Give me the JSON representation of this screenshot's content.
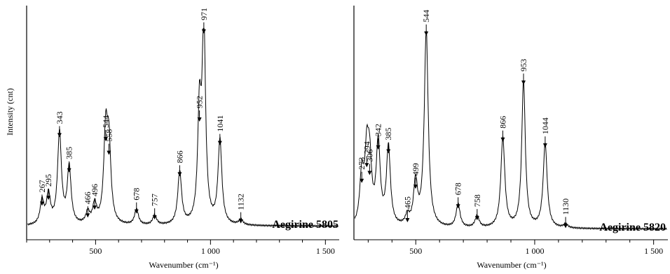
{
  "chart_data": [
    {
      "type": "line",
      "title": "Aegirine 5805",
      "xlabel": "Wavenumber (cm⁻¹)",
      "ylabel": "Intensity (cnt)",
      "xlim": [
        200,
        1560
      ],
      "xticks": [
        500,
        1000,
        1500
      ],
      "xtick_labels": [
        "500",
        "1 000",
        "1 500"
      ],
      "line_color": "#000000",
      "baseline": 0.03,
      "peaks": [
        {
          "label": "267",
          "x": 267,
          "y": 0.12
        },
        {
          "label": "295",
          "x": 295,
          "y": 0.15
        },
        {
          "label": "343",
          "x": 343,
          "y": 0.47
        },
        {
          "label": "385",
          "x": 385,
          "y": 0.29
        },
        {
          "label": "466",
          "x": 466,
          "y": 0.06
        },
        {
          "label": "496",
          "x": 496,
          "y": 0.1
        },
        {
          "label": "544",
          "x": 544,
          "y": 0.45
        },
        {
          "label": "558",
          "x": 558,
          "y": 0.38
        },
        {
          "label": "678",
          "x": 678,
          "y": 0.08
        },
        {
          "label": "757",
          "x": 757,
          "y": 0.05
        },
        {
          "label": "866",
          "x": 866,
          "y": 0.27
        },
        {
          "label": "952",
          "x": 952,
          "y": 0.55
        },
        {
          "label": "971",
          "x": 971,
          "y": 1.0
        },
        {
          "label": "1041",
          "x": 1041,
          "y": 0.43
        },
        {
          "label": "1132",
          "x": 1132,
          "y": 0.03
        }
      ]
    },
    {
      "type": "line",
      "title": "Aegirine 5820",
      "xlabel": "Wavenumber (cm⁻¹)",
      "ylabel": "",
      "xlim": [
        240,
        1560
      ],
      "xticks": [
        500,
        1000,
        1500
      ],
      "xtick_labels": [
        "500",
        "1 000",
        "1 500"
      ],
      "line_color": "#000000",
      "baseline": 0.03,
      "peaks": [
        {
          "label": "273",
          "x": 273,
          "y": 0.25
        },
        {
          "label": "294",
          "x": 294,
          "y": 0.33
        },
        {
          "label": "306",
          "x": 306,
          "y": 0.29
        },
        {
          "label": "342",
          "x": 342,
          "y": 0.42
        },
        {
          "label": "385",
          "x": 385,
          "y": 0.4
        },
        {
          "label": "465",
          "x": 465,
          "y": 0.05
        },
        {
          "label": "499",
          "x": 499,
          "y": 0.22
        },
        {
          "label": "544",
          "x": 544,
          "y": 1.0
        },
        {
          "label": "678",
          "x": 678,
          "y": 0.12
        },
        {
          "label": "758",
          "x": 758,
          "y": 0.06
        },
        {
          "label": "866",
          "x": 866,
          "y": 0.46
        },
        {
          "label": "953",
          "x": 953,
          "y": 0.75
        },
        {
          "label": "1044",
          "x": 1044,
          "y": 0.43
        },
        {
          "label": "1130",
          "x": 1130,
          "y": 0.02
        }
      ]
    }
  ]
}
